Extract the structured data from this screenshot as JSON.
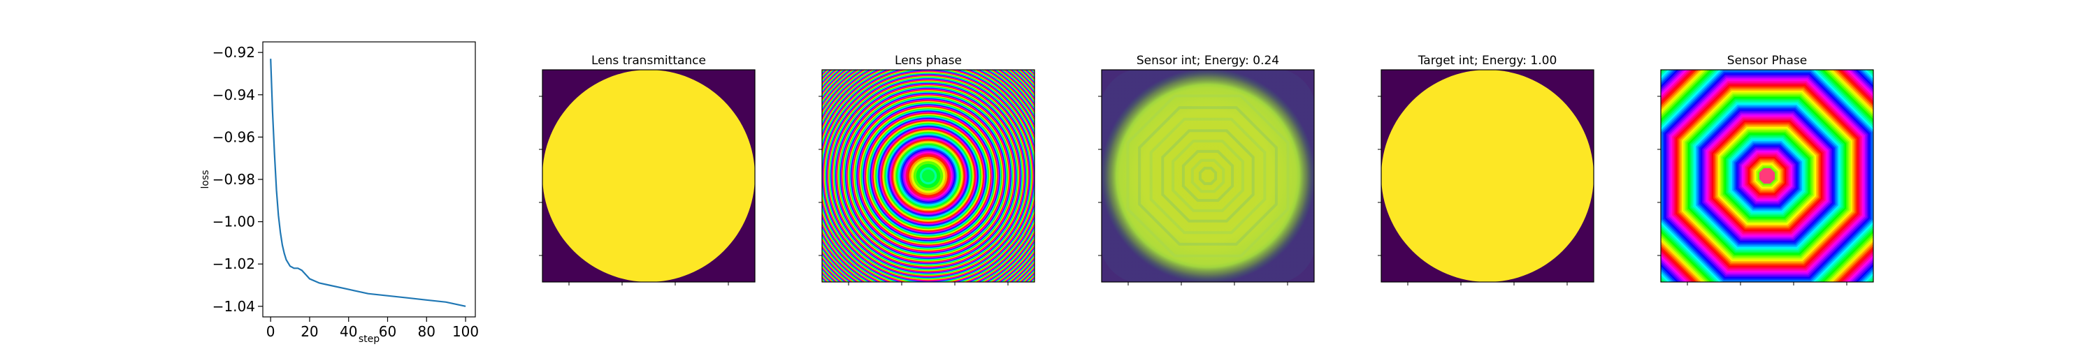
{
  "chart_data": [
    {
      "type": "line",
      "title": "",
      "xlabel": "step",
      "ylabel": "loss",
      "xlim": [
        -4,
        105
      ],
      "ylim": [
        -1.045,
        -0.915
      ],
      "xticks": [
        0,
        20,
        40,
        60,
        80,
        100
      ],
      "yticks": [
        -0.92,
        -0.94,
        -0.96,
        -0.98,
        -1.0,
        -1.02,
        -1.04
      ],
      "ytick_labels": [
        "−0.92",
        "−0.94",
        "−0.96",
        "−0.98",
        "−1.00",
        "−1.02",
        "−1.04"
      ],
      "grid": false,
      "series": [
        {
          "color": "#1f77b4",
          "x": [
            0,
            1,
            2,
            3,
            4,
            5,
            6,
            7,
            8,
            10,
            12,
            14,
            16,
            18,
            20,
            25,
            30,
            40,
            50,
            60,
            70,
            80,
            90,
            100
          ],
          "y": [
            -0.923,
            -0.948,
            -0.968,
            -0.985,
            -0.997,
            -1.005,
            -1.011,
            -1.015,
            -1.018,
            -1.021,
            -1.022,
            -1.022,
            -1.023,
            -1.025,
            -1.027,
            -1.029,
            -1.03,
            -1.032,
            -1.034,
            -1.035,
            -1.036,
            -1.037,
            -1.038,
            -1.04
          ]
        }
      ]
    },
    {
      "type": "heatmap",
      "title": "Lens transmittance",
      "colormap": "viridis",
      "pattern": "uniform-disk"
    },
    {
      "type": "heatmap",
      "title": "Lens phase",
      "colormap": "hsv",
      "pattern": "fresnel-rings"
    },
    {
      "type": "heatmap",
      "title": "Sensor int; Energy: 0.24",
      "colormap": "viridis",
      "pattern": "speckled-disk"
    },
    {
      "type": "heatmap",
      "title": "Target int; Energy: 1.00",
      "colormap": "viridis",
      "pattern": "uniform-disk"
    },
    {
      "type": "heatmap",
      "title": "Sensor Phase",
      "colormap": "hsv",
      "pattern": "octagonal-rings"
    }
  ]
}
